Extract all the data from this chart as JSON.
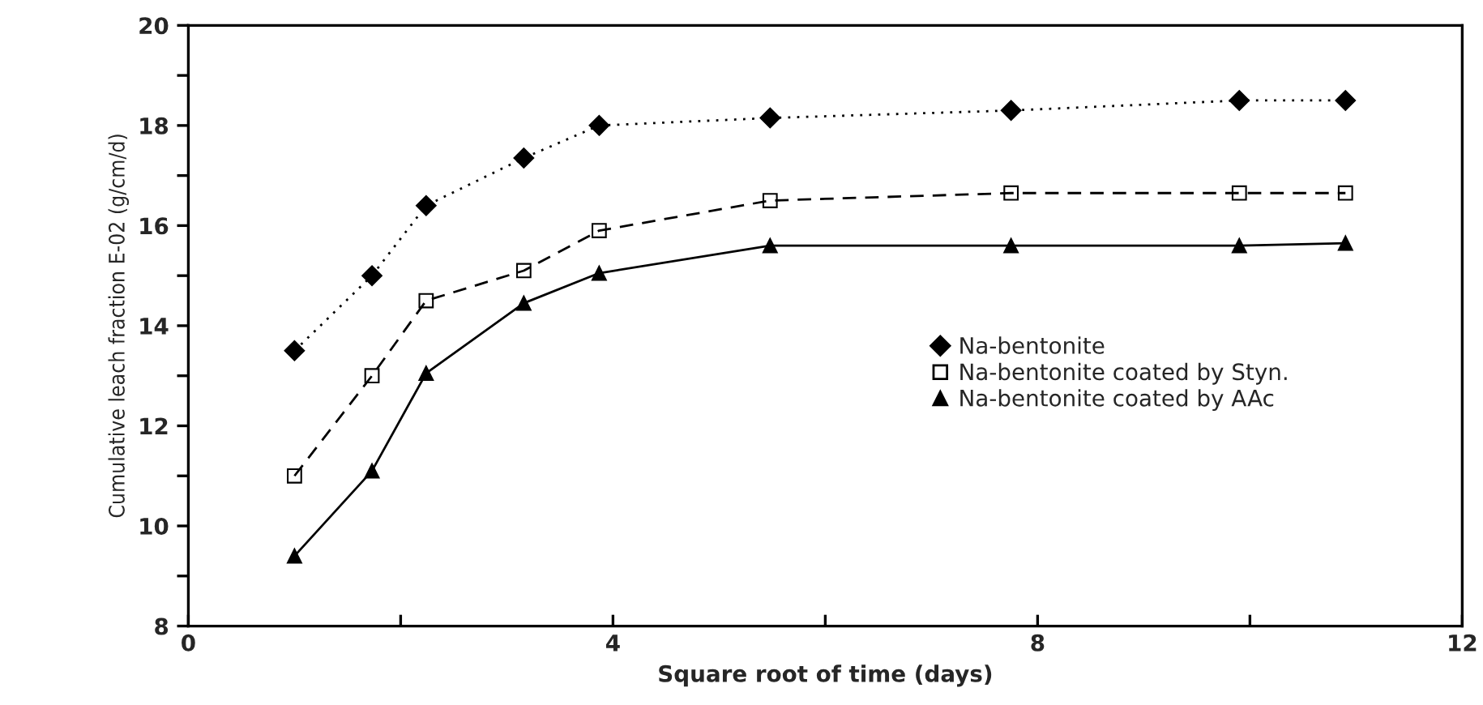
{
  "chart_data": {
    "type": "line",
    "xlabel": "Square root of time (days)",
    "ylabel": "Cumulative leach fraction E-02 (g/cm/d)",
    "x": [
      1,
      1.73,
      2.24,
      3.16,
      3.87,
      5.48,
      7.75,
      9.9,
      10.9
    ],
    "series": [
      {
        "name": "Na-bentonite",
        "color": "#000000",
        "marker": "diamond",
        "line_style": "dotted",
        "values": [
          13.5,
          15.0,
          16.4,
          17.35,
          18.0,
          18.15,
          18.3,
          18.5,
          18.5
        ]
      },
      {
        "name": "Na-bentonite coated by Styn.",
        "color": "#000000",
        "marker": "square",
        "line_style": "dashed",
        "values": [
          11.0,
          13.0,
          14.5,
          15.1,
          15.9,
          16.5,
          16.65,
          16.65,
          16.65
        ]
      },
      {
        "name": "Na-bentonite coated by AAc",
        "color": "#000000",
        "marker": "triangle",
        "line_style": "solid",
        "values": [
          9.4,
          11.1,
          13.05,
          14.45,
          15.05,
          15.6,
          15.6,
          15.6,
          15.65
        ]
      }
    ],
    "xlim": [
      0,
      12
    ],
    "xticks": [
      0,
      {
        "value": 2,
        "label": null
      },
      4,
      {
        "value": 6,
        "label": null
      },
      8,
      {
        "value": 10,
        "label": null
      },
      12
    ],
    "ylim": [
      8,
      20
    ],
    "yticks": [
      8,
      {
        "value": 9,
        "label": null
      },
      10,
      {
        "value": 11,
        "label": null
      },
      12,
      {
        "value": 13,
        "label": null
      },
      14,
      {
        "value": 15,
        "label": null
      },
      16,
      {
        "value": 17,
        "label": null
      },
      18,
      {
        "value": 19,
        "label": null
      },
      20
    ],
    "grid": false,
    "legend": "right"
  }
}
